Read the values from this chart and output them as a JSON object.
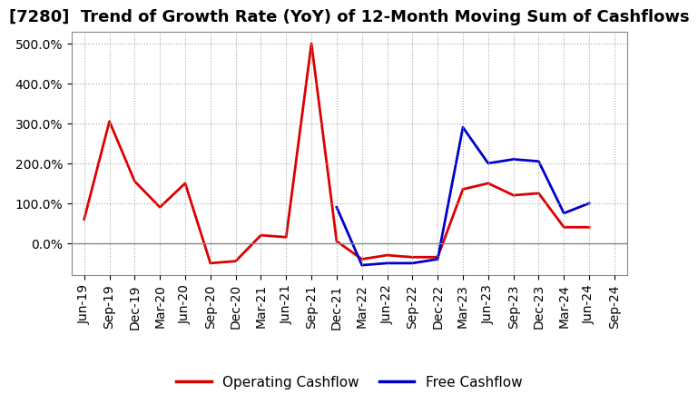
{
  "title": "[7280]  Trend of Growth Rate (YoY) of 12-Month Moving Sum of Cashflows",
  "background_color": "#ffffff",
  "grid_color": "#aaaaaa",
  "ylim": [
    -80,
    530
  ],
  "yticks": [
    0,
    100,
    200,
    300,
    400,
    500
  ],
  "x_labels": [
    "Jun-19",
    "Sep-19",
    "Dec-19",
    "Mar-20",
    "Jun-20",
    "Sep-20",
    "Dec-20",
    "Mar-21",
    "Jun-21",
    "Sep-21",
    "Dec-21",
    "Mar-22",
    "Jun-22",
    "Sep-22",
    "Dec-22",
    "Mar-23",
    "Jun-23",
    "Sep-23",
    "Dec-23",
    "Mar-24",
    "Jun-24",
    "Sep-24"
  ],
  "operating_cashflow": [
    60,
    305,
    155,
    90,
    150,
    -50,
    -45,
    20,
    15,
    500,
    5,
    -40,
    -30,
    -35,
    -35,
    135,
    150,
    120,
    125,
    40,
    40,
    null
  ],
  "free_cashflow": [
    null,
    null,
    null,
    null,
    null,
    null,
    null,
    null,
    null,
    null,
    90,
    -55,
    -50,
    -50,
    -40,
    290,
    200,
    210,
    205,
    75,
    100,
    null
  ],
  "op_color": "#dd0000",
  "free_color": "#0000cc",
  "line_width": 2.0,
  "title_fontsize": 13,
  "tick_fontsize": 10,
  "legend_fontsize": 11
}
